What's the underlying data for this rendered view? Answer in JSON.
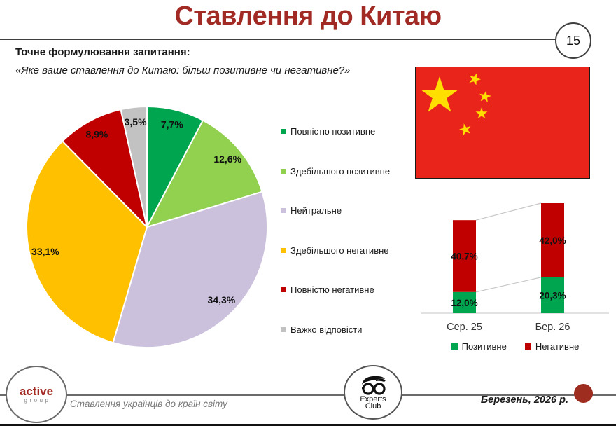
{
  "page": {
    "title": "Ставлення до Китаю",
    "page_number": "15",
    "question_label": "Точне формулювання запитання:",
    "question_text": "«Яке ваше ставлення до Китаю: більш позитивне чи негативне?»"
  },
  "colors": {
    "title_red": "#A22A24",
    "positive_full_green": "#00A550",
    "positive_mostly_green": "#92D050",
    "neutral_lavender": "#CCC1DD",
    "negative_mostly_yellow": "#FFC000",
    "negative_full_red": "#C00000",
    "hard_to_say_gray": "#C2C2C2",
    "flag_red": "#E8241B",
    "flag_yellow": "#FFDE00",
    "connector_gray": "#C6C6C6",
    "accent_dark_red": "#9E2D20"
  },
  "chart_data": [
    {
      "type": "pie",
      "labels": [
        "Повністю позитивне",
        "Здебільшого позитивне",
        "Нейтральне",
        "Здебільшого негативне",
        "Повністю негативне",
        "Важко відповісти"
      ],
      "values": [
        7.7,
        12.6,
        34.3,
        33.1,
        8.9,
        3.5
      ],
      "value_labels": [
        "7,7%",
        "12,6%",
        "34,3%",
        "33,1%",
        "8,9%",
        "3,5%"
      ],
      "colors": [
        "#00A550",
        "#92D050",
        "#CCC1DD",
        "#FFC000",
        "#C00000",
        "#C2C2C2"
      ],
      "start_angle_deg": 0,
      "direction": "clockwise",
      "legend_position": "right"
    },
    {
      "type": "bar",
      "subtype": "stacked",
      "categories": [
        "Сер. 25",
        "Бер. 26"
      ],
      "series": [
        {
          "name": "Позитивне",
          "values": [
            12.0,
            20.3
          ],
          "value_labels": [
            "12,0%",
            "20,3%"
          ],
          "color": "#00A550"
        },
        {
          "name": "Негативне",
          "values": [
            40.7,
            42.0
          ],
          "value_labels": [
            "40,7%",
            "42,0%"
          ],
          "color": "#C00000"
        }
      ],
      "ylim": [
        0,
        65
      ],
      "grid": false,
      "legend_position": "bottom",
      "connector_lines": true
    }
  ],
  "icons": {
    "china_flag": "red flag with one large and four small yellow stars",
    "experts_club_logo": "face with round glasses and hair",
    "active_group_logo": "active group wordmark",
    "accent_dot": "dark red filled circle"
  },
  "footer": {
    "brand_top": "active",
    "brand_bottom": "group",
    "left_text": "Ставлення українців до країн світу",
    "logo_line1": "Experts",
    "logo_line2": "Club",
    "right_text": "Березень, 2026 р."
  }
}
